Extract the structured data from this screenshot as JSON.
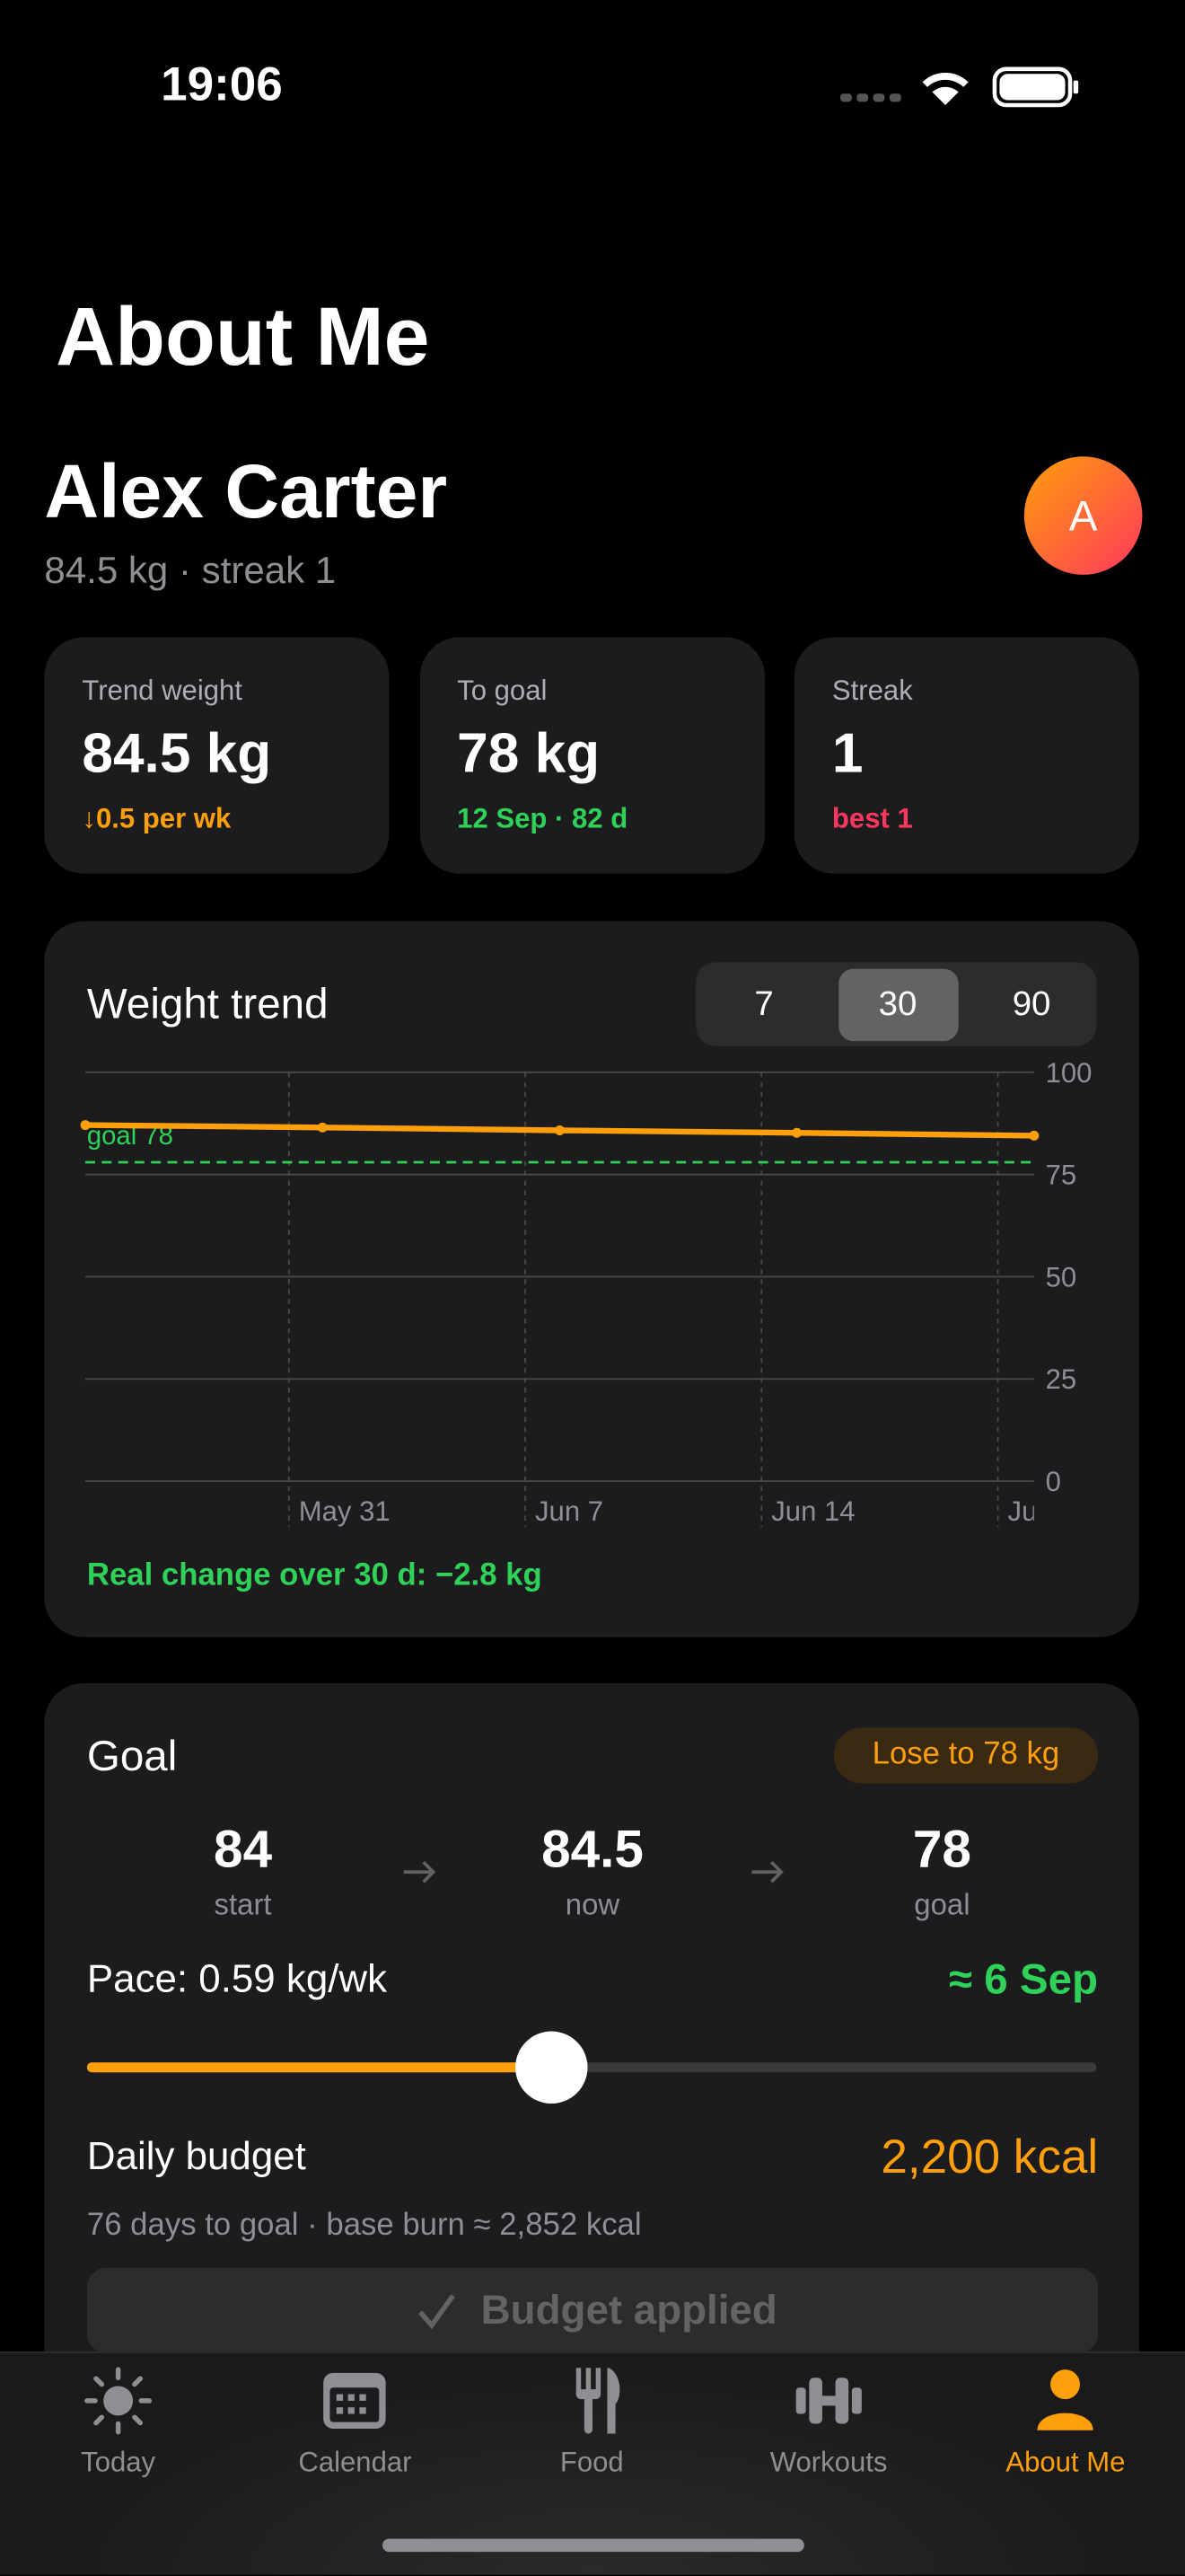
{
  "status_bar": {
    "time": "19:06"
  },
  "header": {
    "title": "About Me"
  },
  "profile": {
    "name": "Alex Carter",
    "subtitle": "84.5 kg · streak 1",
    "avatar": "A"
  },
  "stats": [
    {
      "label": "Trend weight",
      "value": "84.5 kg",
      "detail": "↓0.5 per wk",
      "detail_color": "#ff9f0a"
    },
    {
      "label": "To goal",
      "value": "78 kg",
      "detail": "12 Sep · 82 d",
      "detail_color": "#30d158"
    },
    {
      "label": "Streak",
      "value": "1",
      "detail": "best 1",
      "detail_color": "#ff375f"
    }
  ],
  "chart_data": {
    "type": "line",
    "title": "Weight trend",
    "range_options": [
      "7",
      "30",
      "90"
    ],
    "selected_index": 1,
    "categories": [
      null,
      null,
      null,
      null,
      null
    ],
    "values": [
      87.1,
      86.5,
      85.8,
      85.2,
      84.5
    ],
    "color": "#ff9f0a",
    "ylim": [
      0,
      100
    ],
    "yticks": [
      0,
      25,
      50,
      75,
      100
    ],
    "grid": true,
    "xticks": [
      "May 31",
      "Jun 7",
      "Jun 14",
      "Ju"
    ],
    "goal_line": {
      "value": 78,
      "label": "goal 78",
      "color": "#30d158"
    },
    "footnote": "Real change over 30 d: −2.8 kg"
  },
  "goal": {
    "title": "Goal",
    "badge": "Lose to 78 kg",
    "steps": [
      {
        "value": "84",
        "label": "start"
      },
      {
        "value": "84.5",
        "label": "now"
      },
      {
        "value": "78",
        "label": "goal"
      }
    ],
    "pace": "Pace: 0.59 kg/wk",
    "eta": "≈ 6 Sep",
    "budget_label": "Daily budget",
    "budget_value": "2,200 kcal",
    "budget_note": "76 days to goal · base burn ≈ 2,852 kcal",
    "button": "Budget applied"
  },
  "tab_bar": {
    "items": [
      "Today",
      "Calendar",
      "Food",
      "Workouts",
      "About Me"
    ],
    "selected_index": 4
  }
}
